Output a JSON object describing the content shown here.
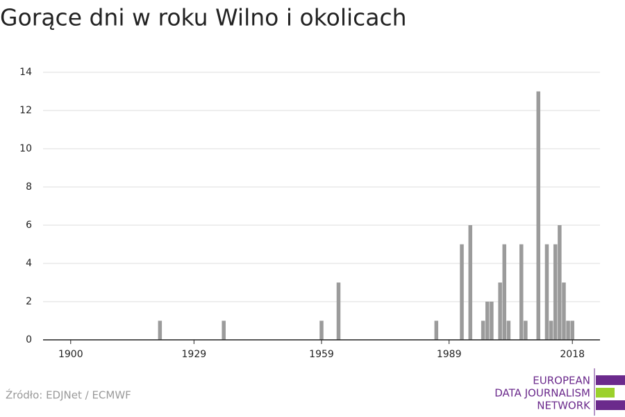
{
  "chart_data": {
    "type": "bar",
    "title": "Gorące dni w roku Wilno i okolicach",
    "x": [
      1921,
      1936,
      1959,
      1963,
      1986,
      1992,
      1994,
      1997,
      1998,
      1999,
      2001,
      2002,
      2003,
      2006,
      2007,
      2010,
      2012,
      2013,
      2014,
      2015,
      2016,
      2017,
      2018
    ],
    "values": [
      1,
      1,
      1,
      3,
      1,
      5,
      6,
      1,
      2,
      2,
      3,
      5,
      1,
      5,
      1,
      13,
      5,
      1,
      5,
      6,
      3,
      1,
      1
    ],
    "color": "#9b9b9b",
    "xlim": [
      1893.5,
      2024.5
    ],
    "xticks": [
      1900,
      1929,
      1959,
      1989,
      2018
    ],
    "ylim": [
      0,
      14
    ],
    "yticks": [
      0,
      2,
      4,
      6,
      8,
      10,
      12,
      14
    ],
    "grid": true
  },
  "source": "Źródło: EDJNet / ECMWF",
  "logo": [
    "EUROPEAN",
    "DATA JOURNALISM",
    "NETWORK"
  ]
}
